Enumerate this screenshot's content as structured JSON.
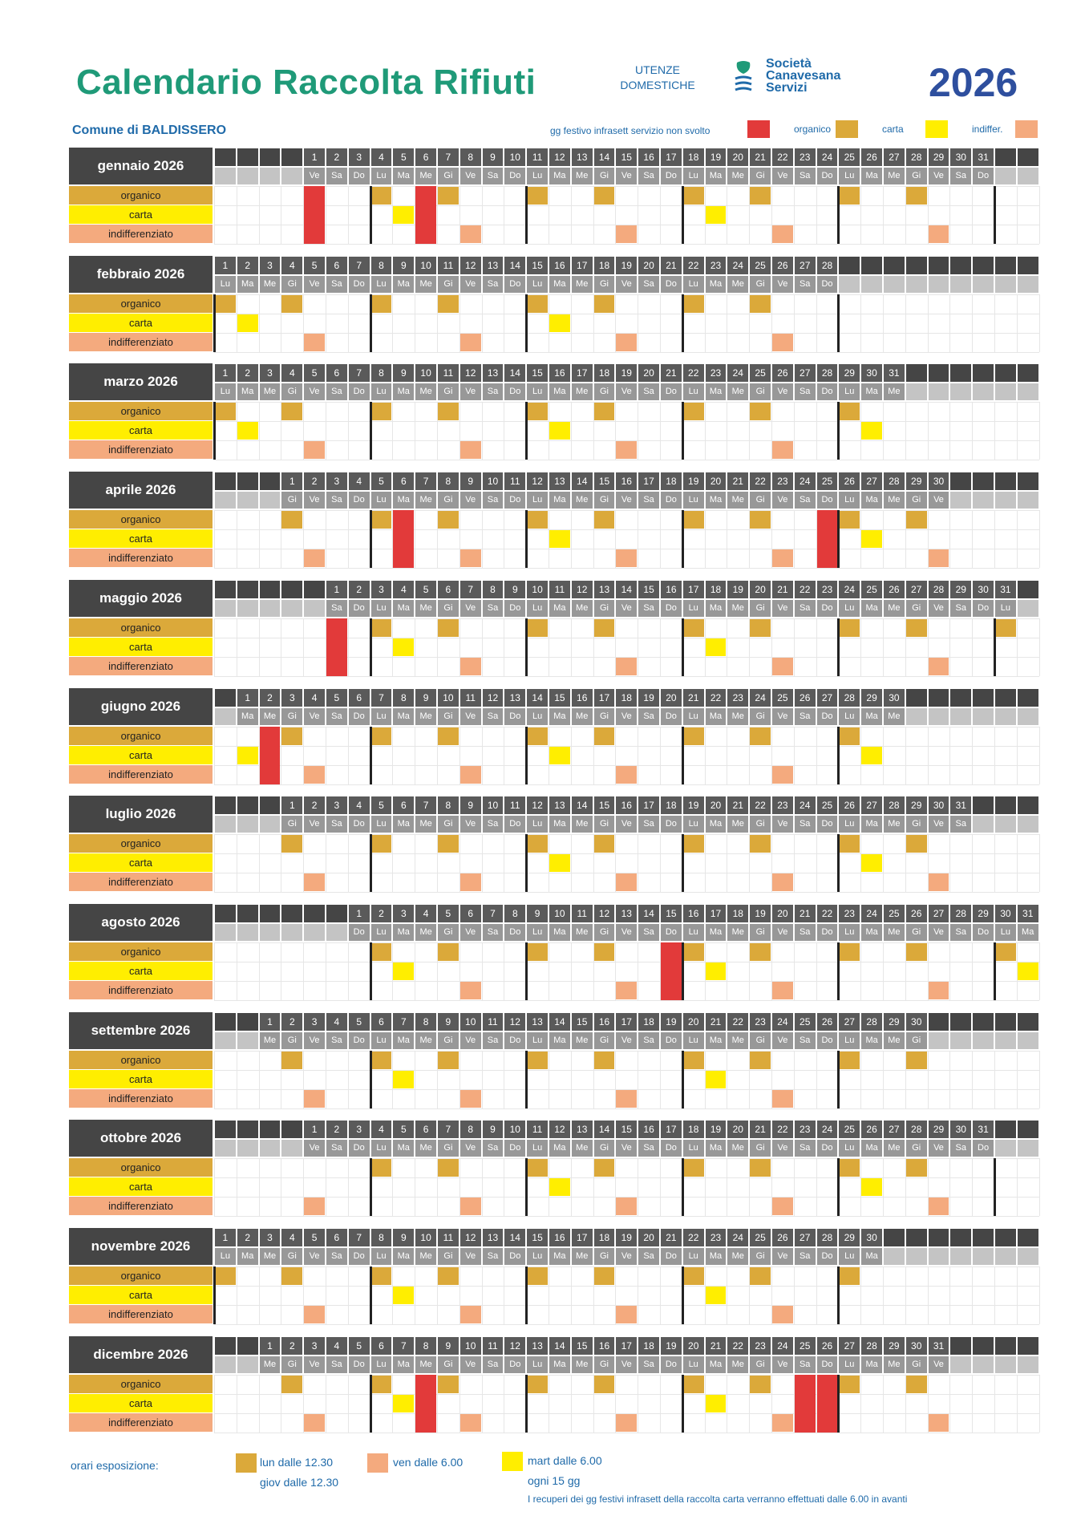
{
  "header": {
    "title": "Calendario Raccolta  Rifiuti",
    "utenze_line1": "UTENZE",
    "utenze_line2": "DOMESTICHE",
    "logo_line1": "Società",
    "logo_line2": "Canavesana",
    "logo_line3": "Servizi",
    "year": "2026",
    "comune": "Comune di BALDISSERO"
  },
  "legend": {
    "festivo": "gg festivo infrasett servizio non svolto",
    "organico": "organico",
    "carta": "carta",
    "indiffer": "indiffer."
  },
  "colors": {
    "organico": "#dba93a",
    "carta": "#ffee00",
    "indifferenziato": "#f4aa7e",
    "festivo": "#e23a3a",
    "header_dark": "#454545",
    "accent": "#1f9a78"
  },
  "category_labels": [
    "organico",
    "carta",
    "indifferenziato"
  ],
  "day_abbrev": [
    "Lu",
    "Ma",
    "Me",
    "Gi",
    "Ve",
    "Sa",
    "Do"
  ],
  "months": [
    {
      "label": "gennaio 2026",
      "offset": 4,
      "days": 31,
      "paper_mod": 1,
      "holidays": [
        1,
        6
      ]
    },
    {
      "label": "febbraio 2026",
      "offset": 0,
      "days": 28,
      "paper_mod": 0,
      "holidays": []
    },
    {
      "label": "marzo 2026",
      "offset": 0,
      "days": 31,
      "paper_mod": 0,
      "holidays": []
    },
    {
      "label": "aprile 2026",
      "offset": 3,
      "days": 30,
      "paper_mod": 0,
      "holidays": [
        6,
        25
      ]
    },
    {
      "label": "maggio 2026",
      "offset": 5,
      "days": 31,
      "paper_mod": 1,
      "holidays": [
        1
      ]
    },
    {
      "label": "giugno 2026",
      "offset": 1,
      "days": 30,
      "paper_mod": 0,
      "holidays": [
        2
      ]
    },
    {
      "label": "luglio 2026",
      "offset": 3,
      "days": 31,
      "paper_mod": 0,
      "holidays": []
    },
    {
      "label": "agosto 2026",
      "offset": 6,
      "days": 31,
      "paper_mod": 1,
      "holidays": [
        15
      ]
    },
    {
      "label": "settembre 2026",
      "offset": 2,
      "days": 30,
      "paper_mod": 1,
      "holidays": []
    },
    {
      "label": "ottobre 2026",
      "offset": 4,
      "days": 31,
      "paper_mod": 0,
      "holidays": []
    },
    {
      "label": "novembre 2026",
      "offset": 0,
      "days": 30,
      "paper_mod": 1,
      "holidays": []
    },
    {
      "label": "dicembre 2026",
      "offset": 2,
      "days": 31,
      "paper_mod": 1,
      "holidays": [
        8,
        25,
        26
      ]
    }
  ],
  "footer": {
    "label": "orari esposizione:",
    "organico_line1": "lun dalle 12.30",
    "organico_line2": "giov dalle 12.30",
    "indiff_line1": "ven dalle 6.00",
    "carta_line1": "mart dalle 6.00",
    "carta_line2": "ogni 15 gg",
    "note": "I recuperi dei gg festivi infrasett della raccolta carta verranno effettuati dalle 6.00 in avanti"
  }
}
